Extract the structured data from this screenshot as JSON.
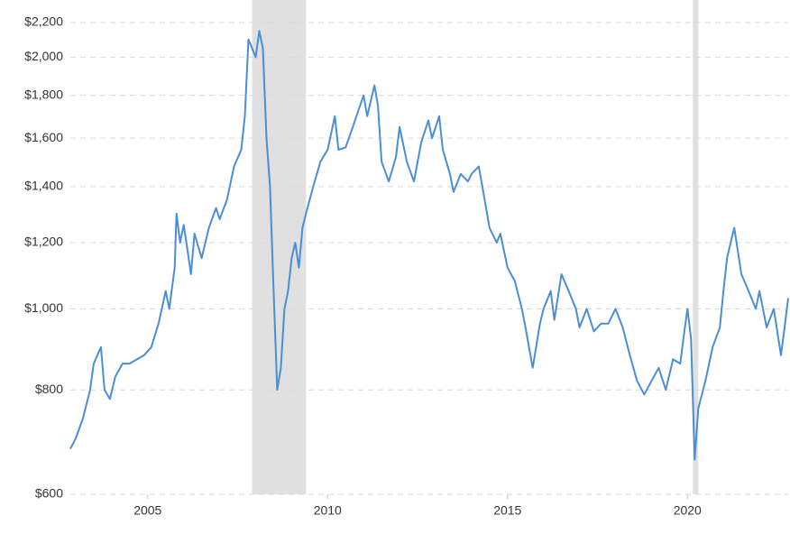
{
  "chart_data": {
    "type": "line",
    "log_scale": true,
    "grid": true,
    "color": "#4a8fd6",
    "shade_color": "#e0e0e0",
    "xlim": [
      2002.85,
      2022.8
    ],
    "xticks": [
      2005,
      2010,
      2015,
      2020
    ],
    "ylim": [
      600,
      2200
    ],
    "yticks": [
      {
        "value": 600,
        "label": "$600"
      },
      {
        "value": 800,
        "label": "$800"
      },
      {
        "value": 1000,
        "label": "$1,000"
      },
      {
        "value": 1200,
        "label": "$1,200"
      },
      {
        "value": 1400,
        "label": "$1,400"
      },
      {
        "value": 1600,
        "label": "$1,600"
      },
      {
        "value": 1800,
        "label": "$1,800"
      },
      {
        "value": 2000,
        "label": "$2,000"
      },
      {
        "value": 2200,
        "label": "$2,200"
      }
    ],
    "shaded_ranges": [
      [
        2007.9,
        2009.4
      ],
      [
        2020.15,
        2020.3
      ]
    ],
    "x": [
      2002.85,
      2003.0,
      2003.2,
      2003.4,
      2003.5,
      2003.7,
      2003.8,
      2003.95,
      2004.1,
      2004.3,
      2004.5,
      2004.7,
      2004.9,
      2005.1,
      2005.3,
      2005.5,
      2005.6,
      2005.75,
      2005.8,
      2005.9,
      2006.0,
      2006.1,
      2006.2,
      2006.3,
      2006.5,
      2006.7,
      2006.9,
      2007.0,
      2007.2,
      2007.4,
      2007.6,
      2007.7,
      2007.8,
      2007.9,
      2008.0,
      2008.1,
      2008.2,
      2008.3,
      2008.4,
      2008.5,
      2008.6,
      2008.7,
      2008.8,
      2008.9,
      2009.0,
      2009.1,
      2009.2,
      2009.3,
      2009.4,
      2009.6,
      2009.8,
      2010.0,
      2010.2,
      2010.3,
      2010.5,
      2010.7,
      2010.9,
      2011.0,
      2011.1,
      2011.3,
      2011.4,
      2011.5,
      2011.7,
      2011.9,
      2012.0,
      2012.2,
      2012.4,
      2012.6,
      2012.8,
      2012.9,
      2013.1,
      2013.2,
      2013.4,
      2013.5,
      2013.7,
      2013.9,
      2014.0,
      2014.2,
      2014.3,
      2014.5,
      2014.7,
      2014.8,
      2015.0,
      2015.2,
      2015.4,
      2015.5,
      2015.7,
      2015.9,
      2016.0,
      2016.2,
      2016.3,
      2016.5,
      2016.7,
      2016.9,
      2017.0,
      2017.2,
      2017.4,
      2017.6,
      2017.8,
      2018.0,
      2018.2,
      2018.4,
      2018.6,
      2018.8,
      2019.0,
      2019.2,
      2019.4,
      2019.6,
      2019.8,
      2019.9,
      2020.0,
      2020.1,
      2020.2,
      2020.3,
      2020.5,
      2020.7,
      2020.9,
      2021.0,
      2021.1,
      2021.2,
      2021.3,
      2021.5,
      2021.7,
      2021.9,
      2022.0,
      2022.2,
      2022.4,
      2022.6,
      2022.7,
      2022.8
    ],
    "values": [
      680,
      700,
      740,
      800,
      860,
      900,
      800,
      780,
      830,
      860,
      860,
      870,
      880,
      900,
      960,
      1050,
      1000,
      1120,
      1300,
      1200,
      1260,
      1180,
      1100,
      1230,
      1150,
      1250,
      1320,
      1280,
      1350,
      1480,
      1550,
      1700,
      2100,
      2050,
      2000,
      2150,
      2050,
      1600,
      1400,
      1050,
      800,
      850,
      1000,
      1050,
      1150,
      1200,
      1120,
      1250,
      1300,
      1400,
      1500,
      1550,
      1700,
      1550,
      1560,
      1650,
      1750,
      1800,
      1700,
      1850,
      1750,
      1500,
      1420,
      1520,
      1650,
      1500,
      1420,
      1580,
      1680,
      1600,
      1700,
      1550,
      1450,
      1380,
      1450,
      1420,
      1450,
      1480,
      1400,
      1250,
      1200,
      1230,
      1120,
      1080,
      1000,
      950,
      850,
      960,
      1000,
      1050,
      970,
      1100,
      1050,
      1000,
      950,
      1000,
      940,
      960,
      960,
      1000,
      950,
      880,
      820,
      790,
      820,
      850,
      800,
      870,
      860,
      930,
      1000,
      920,
      660,
      760,
      820,
      900,
      950,
      1050,
      1150,
      1200,
      1250,
      1100,
      1050,
      1000,
      1050,
      950,
      1000,
      880,
      950,
      1030
    ]
  }
}
